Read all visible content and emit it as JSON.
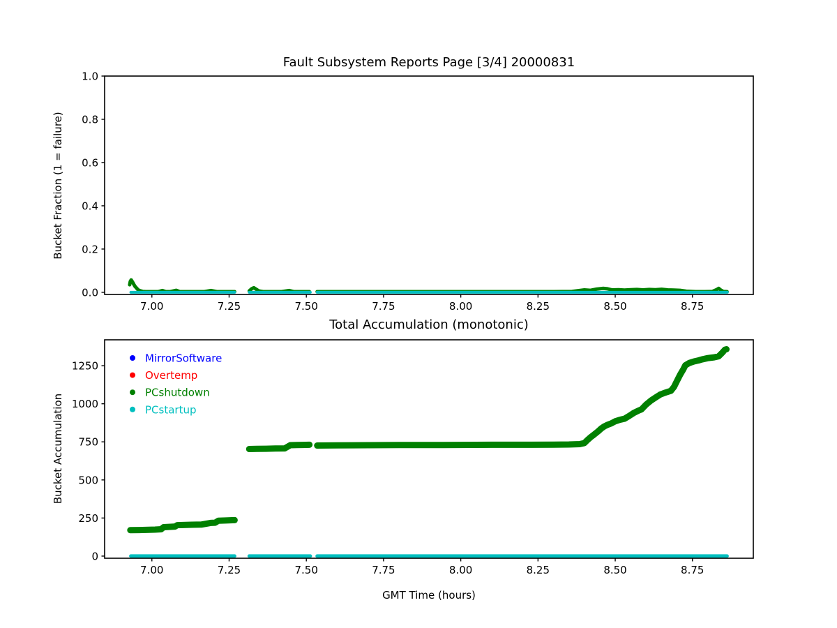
{
  "figure": {
    "background": "#ffffff",
    "top_title": "Fault Subsystem Reports Page [3/4] 20000831",
    "bottom_title": "Total Accumulation (monotonic)",
    "xlabel": "GMT Time (hours)",
    "top_ylabel": "Bucket Fraction (1 = failure)",
    "bottom_ylabel": "Bucket Accumulation"
  },
  "colors": {
    "MirrorSoftware": "#0000ff",
    "Overtemp": "#ff0000",
    "PCshutdown": "#008000",
    "PCstartup": "#00bfbf",
    "axis": "#000000"
  },
  "chart_data": [
    {
      "type": "line",
      "title": "Fault Subsystem Reports Page [3/4] 20000831",
      "xlabel": "",
      "ylabel": "Bucket Fraction (1 = failure)",
      "xlim": [
        6.847,
        8.947
      ],
      "ylim": [
        -0.01,
        1.0
      ],
      "grid": false,
      "xticks": [
        7.0,
        7.25,
        7.5,
        7.75,
        8.0,
        8.25,
        8.5,
        8.75
      ],
      "xtick_labels": [
        "7.00",
        "7.25",
        "7.50",
        "7.75",
        "8.00",
        "8.25",
        "8.50",
        "8.75"
      ],
      "yticks": [
        0.0,
        0.2,
        0.4,
        0.6,
        0.8,
        1.0
      ],
      "ytick_labels": [
        "0.0",
        "0.2",
        "0.4",
        "0.6",
        "0.8",
        "1.0"
      ],
      "series": [
        {
          "name": "MirrorSoftware",
          "color": "#0000ff",
          "width": 5,
          "points": []
        },
        {
          "name": "Overtemp",
          "color": "#ff0000",
          "width": 5,
          "points": []
        },
        {
          "name": "PCshutdown",
          "color": "#008000",
          "width": 5,
          "points": [
            [
              6.928,
              0.035
            ],
            [
              6.93,
              0.05
            ],
            [
              6.933,
              0.057
            ],
            [
              6.937,
              0.048
            ],
            [
              6.941,
              0.038
            ],
            [
              6.945,
              0.028
            ],
            [
              6.95,
              0.02
            ],
            [
              6.955,
              0.012
            ],
            [
              6.962,
              0.007
            ],
            [
              6.97,
              0.004
            ],
            [
              6.98,
              0.003
            ],
            [
              7.0,
              0.003
            ],
            [
              7.02,
              0.003
            ],
            [
              7.034,
              0.008
            ],
            [
              7.045,
              0.003
            ],
            [
              7.06,
              0.003
            ],
            [
              7.079,
              0.009
            ],
            [
              7.09,
              0.003
            ],
            [
              7.11,
              0.003
            ],
            [
              7.13,
              0.003
            ],
            [
              7.15,
              0.003
            ],
            [
              7.17,
              0.003
            ],
            [
              7.192,
              0.008
            ],
            [
              7.21,
              0.003
            ],
            [
              7.23,
              0.003
            ],
            [
              7.25,
              0.003
            ],
            [
              7.268,
              0.003
            ],
            null,
            [
              7.315,
              0.006
            ],
            [
              7.323,
              0.016
            ],
            [
              7.33,
              0.021
            ],
            [
              7.338,
              0.014
            ],
            [
              7.346,
              0.006
            ],
            [
              7.36,
              0.003
            ],
            [
              7.38,
              0.003
            ],
            [
              7.4,
              0.003
            ],
            [
              7.42,
              0.003
            ],
            [
              7.445,
              0.008
            ],
            [
              7.46,
              0.003
            ],
            [
              7.48,
              0.003
            ],
            [
              7.51,
              0.003
            ],
            null,
            [
              7.535,
              0.003
            ],
            [
              7.6,
              0.003
            ],
            [
              7.7,
              0.003
            ],
            [
              7.8,
              0.003
            ],
            [
              7.9,
              0.003
            ],
            [
              8.0,
              0.003
            ],
            [
              8.1,
              0.003
            ],
            [
              8.2,
              0.003
            ],
            [
              8.3,
              0.003
            ],
            [
              8.36,
              0.004
            ],
            [
              8.4,
              0.011
            ],
            [
              8.42,
              0.009
            ],
            [
              8.44,
              0.015
            ],
            [
              8.46,
              0.018
            ],
            [
              8.475,
              0.016
            ],
            [
              8.49,
              0.011
            ],
            [
              8.51,
              0.012
            ],
            [
              8.53,
              0.01
            ],
            [
              8.55,
              0.012
            ],
            [
              8.57,
              0.013
            ],
            [
              8.59,
              0.011
            ],
            [
              8.61,
              0.013
            ],
            [
              8.63,
              0.012
            ],
            [
              8.65,
              0.014
            ],
            [
              8.67,
              0.011
            ],
            [
              8.69,
              0.01
            ],
            [
              8.71,
              0.009
            ],
            [
              8.73,
              0.005
            ],
            [
              8.76,
              0.003
            ],
            [
              8.79,
              0.003
            ],
            [
              8.815,
              0.004
            ],
            [
              8.828,
              0.012
            ],
            [
              8.835,
              0.018
            ],
            [
              8.842,
              0.01
            ],
            [
              8.85,
              0.004
            ],
            [
              8.862,
              0.003
            ]
          ]
        },
        {
          "name": "PCstartup",
          "color": "#00bfbf",
          "width": 4,
          "points": [
            [
              6.932,
              0.0
            ],
            [
              7.268,
              0.0
            ],
            null,
            [
              7.315,
              0.0
            ],
            [
              7.513,
              0.0
            ],
            null,
            [
              7.535,
              0.0
            ],
            [
              8.863,
              0.0
            ]
          ]
        }
      ]
    },
    {
      "type": "line",
      "title": "Total Accumulation (monotonic)",
      "xlabel": "GMT Time (hours)",
      "ylabel": "Bucket Accumulation",
      "xlim": [
        6.847,
        8.947
      ],
      "ylim": [
        -14,
        1420
      ],
      "grid": false,
      "xticks": [
        7.0,
        7.25,
        7.5,
        7.75,
        8.0,
        8.25,
        8.5,
        8.75
      ],
      "xtick_labels": [
        "7.00",
        "7.25",
        "7.50",
        "7.75",
        "8.00",
        "8.25",
        "8.50",
        "8.75"
      ],
      "yticks": [
        0,
        250,
        500,
        750,
        1000,
        1250
      ],
      "ytick_labels": [
        "0",
        "250",
        "500",
        "750",
        "1000",
        "1250"
      ],
      "legend": {
        "position": "upper-left",
        "items": [
          {
            "label": "MirrorSoftware",
            "color": "#0000ff"
          },
          {
            "label": "Overtemp",
            "color": "#ff0000"
          },
          {
            "label": "PCshutdown",
            "color": "#008000"
          },
          {
            "label": "PCstartup",
            "color": "#00bfbf"
          }
        ]
      },
      "series": [
        {
          "name": "MirrorSoftware",
          "color": "#0000ff",
          "width": 6,
          "points": []
        },
        {
          "name": "Overtemp",
          "color": "#ff0000",
          "width": 6,
          "points": []
        },
        {
          "name": "PCshutdown",
          "color": "#008000",
          "width": 9,
          "points": [
            [
              6.93,
              170
            ],
            [
              6.96,
              171
            ],
            [
              6.99,
              173
            ],
            [
              7.01,
              174
            ],
            [
              7.03,
              176
            ],
            [
              7.038,
              190
            ],
            [
              7.06,
              192
            ],
            [
              7.075,
              194
            ],
            [
              7.082,
              203
            ],
            [
              7.1,
              204
            ],
            [
              7.13,
              206
            ],
            [
              7.16,
              207
            ],
            [
              7.19,
              218
            ],
            [
              7.205,
              219
            ],
            [
              7.215,
              232
            ],
            [
              7.24,
              234
            ],
            [
              7.268,
              236
            ],
            null,
            [
              7.315,
              703
            ],
            [
              7.34,
              704
            ],
            [
              7.37,
              705
            ],
            [
              7.4,
              706
            ],
            [
              7.43,
              707
            ],
            [
              7.448,
              728
            ],
            [
              7.47,
              729
            ],
            [
              7.49,
              730
            ],
            [
              7.51,
              731
            ],
            null,
            [
              7.535,
              726
            ],
            [
              7.6,
              727
            ],
            [
              7.7,
              728
            ],
            [
              7.8,
              729
            ],
            [
              7.9,
              729
            ],
            [
              8.0,
              730
            ],
            [
              8.1,
              731
            ],
            [
              8.2,
              731
            ],
            [
              8.3,
              732
            ],
            [
              8.35,
              733
            ],
            [
              8.385,
              735
            ],
            [
              8.4,
              742
            ],
            [
              8.41,
              762
            ],
            [
              8.42,
              780
            ],
            [
              8.43,
              795
            ],
            [
              8.445,
              820
            ],
            [
              8.455,
              838
            ],
            [
              8.465,
              852
            ],
            [
              8.475,
              862
            ],
            [
              8.487,
              871
            ],
            [
              8.5,
              885
            ],
            [
              8.515,
              895
            ],
            [
              8.53,
              902
            ],
            [
              8.545,
              920
            ],
            [
              8.56,
              940
            ],
            [
              8.575,
              955
            ],
            [
              8.585,
              963
            ],
            [
              8.6,
              995
            ],
            [
              8.615,
              1020
            ],
            [
              8.63,
              1040
            ],
            [
              8.645,
              1060
            ],
            [
              8.66,
              1072
            ],
            [
              8.68,
              1085
            ],
            [
              8.69,
              1110
            ],
            [
              8.7,
              1150
            ],
            [
              8.71,
              1190
            ],
            [
              8.72,
              1225
            ],
            [
              8.727,
              1253
            ],
            [
              8.74,
              1268
            ],
            [
              8.755,
              1278
            ],
            [
              8.77,
              1285
            ],
            [
              8.78,
              1291
            ],
            [
              8.8,
              1300
            ],
            [
              8.82,
              1305
            ],
            [
              8.835,
              1312
            ],
            [
              8.845,
              1332
            ],
            [
              8.855,
              1355
            ],
            [
              8.86,
              1358
            ]
          ]
        },
        {
          "name": "PCstartup",
          "color": "#00bfbf",
          "width": 5,
          "points": [
            [
              6.932,
              0
            ],
            [
              7.268,
              0
            ],
            null,
            [
              7.315,
              0
            ],
            [
              7.513,
              0
            ],
            null,
            [
              7.535,
              0
            ],
            [
              8.862,
              0
            ]
          ]
        }
      ]
    }
  ]
}
